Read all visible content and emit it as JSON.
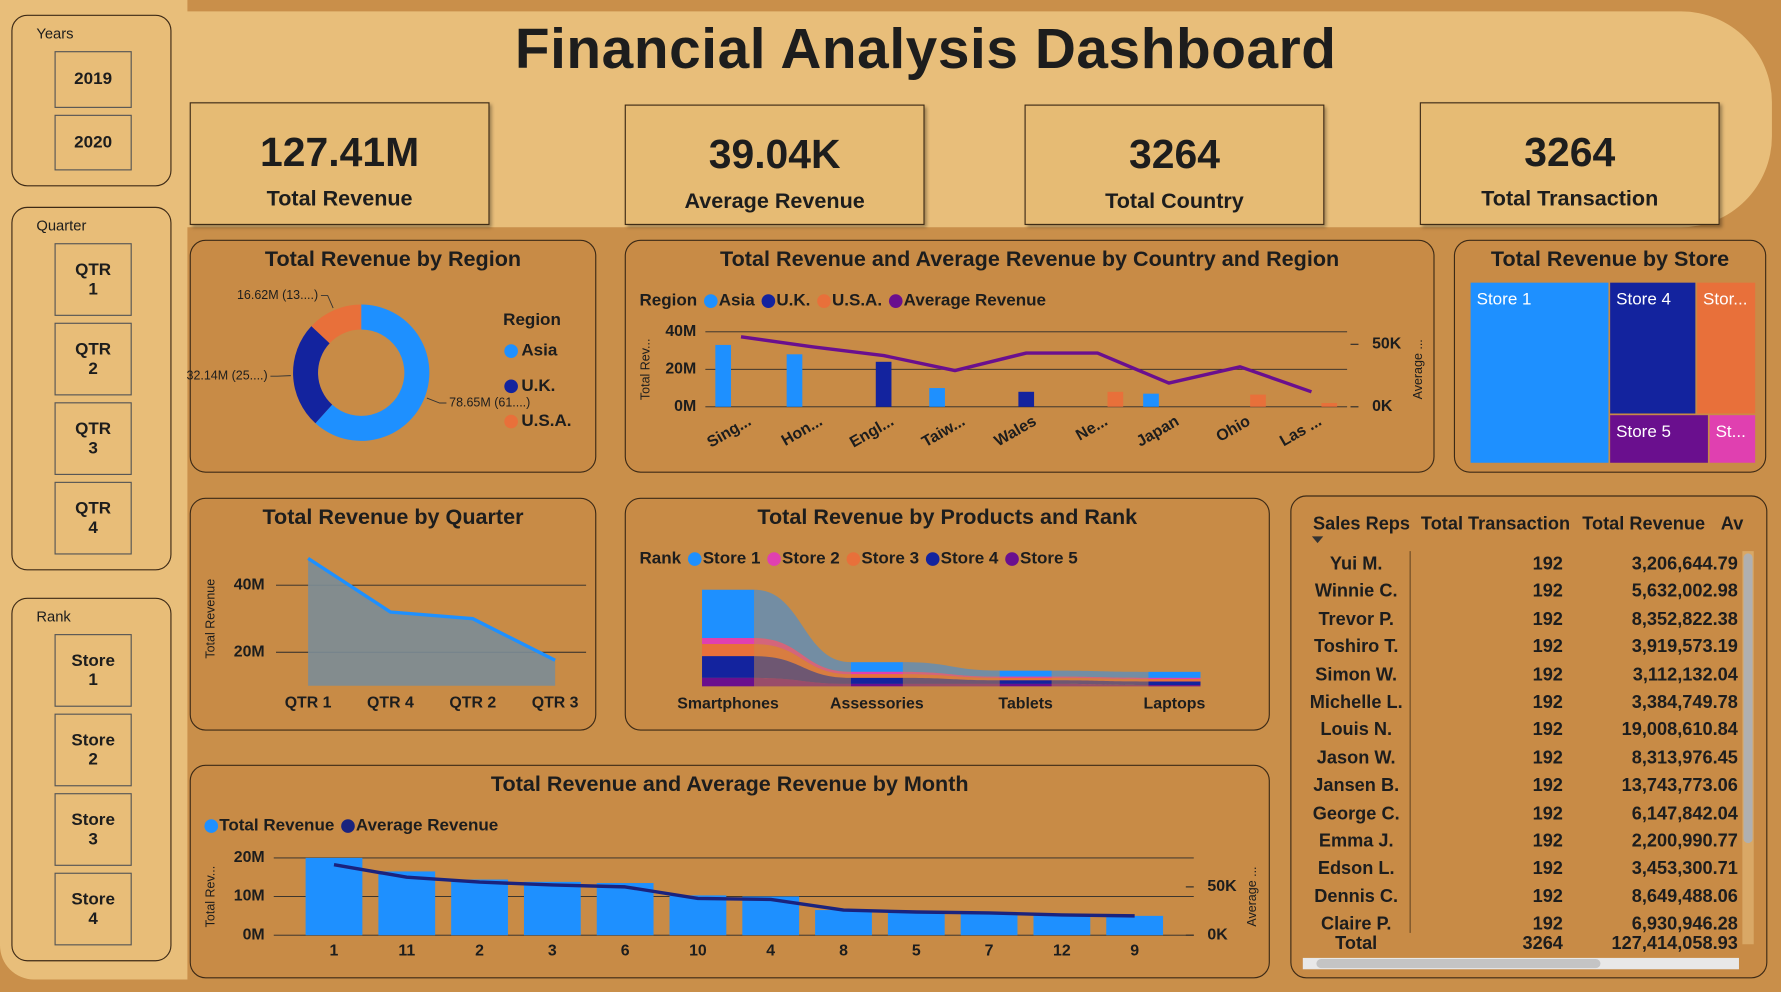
{
  "title": "Financial Analysis Dashboard",
  "slicers": [
    {
      "title": "Years",
      "items": [
        "2019",
        "2020"
      ]
    },
    {
      "title": "Quarter",
      "items": [
        "QTR 1",
        "QTR 2",
        "QTR 3",
        "QTR 4"
      ]
    },
    {
      "title": "Rank",
      "items": [
        "Store 1",
        "Store 2",
        "Store 3",
        "Store 4"
      ]
    }
  ],
  "kpis": [
    {
      "value": "127.41M",
      "label": "Total Revenue"
    },
    {
      "value": "39.04K",
      "label": "Average Revenue"
    },
    {
      "value": "3264",
      "label": "Total Country"
    },
    {
      "value": "3264",
      "label": "Total Transaction"
    }
  ],
  "chart_data": [
    {
      "type": "pie",
      "title": "Total Revenue by Region",
      "legend_title": "Region",
      "donut": true,
      "categories": [
        "Asia",
        "U.K.",
        "U.S.A."
      ],
      "values": [
        78650000,
        32140000,
        16620000
      ],
      "value_labels": [
        "78.65M (61....)",
        "32.14M (25....)",
        "16.62M (13....)"
      ],
      "colors": [
        "#1e90ff",
        "#13239e",
        "#e8703a"
      ]
    },
    {
      "type": "combo",
      "title": "Total Revenue and Average Revenue by Country and Region",
      "legend_title": "Region",
      "y_label": "Total Rev...",
      "y2_label": "Average ...",
      "grid": true,
      "categories": [
        "Sing...",
        "Hon...",
        "Engl...",
        "Taiw...",
        "Wales",
        "Ne...",
        "Japan",
        "Ohio",
        "Las ..."
      ],
      "series": [
        {
          "name": "Asia",
          "color": "#1e90ff",
          "values": [
            33000000,
            28000000,
            null,
            10000000,
            null,
            null,
            7000000,
            null,
            null
          ]
        },
        {
          "name": "U.K.",
          "color": "#13239e",
          "values": [
            null,
            null,
            24000000,
            null,
            8000000,
            null,
            null,
            null,
            null
          ]
        },
        {
          "name": "U.S.A.",
          "color": "#e8703a",
          "values": [
            null,
            null,
            null,
            null,
            null,
            8000000,
            null,
            6500000,
            2000000
          ]
        },
        {
          "name": "Average Revenue",
          "color": "#6a0f8e",
          "type": "line",
          "axis": "y2",
          "values": [
            56000,
            48000,
            41000,
            29000,
            43000,
            43000,
            19000,
            32000,
            12000
          ]
        }
      ],
      "ylim": [
        0,
        40000000
      ],
      "yticks": [
        {
          "value": 0,
          "label": "0M"
        },
        {
          "value": 20000000,
          "label": "20M"
        },
        {
          "value": 40000000,
          "label": "40M"
        }
      ],
      "y2lim": [
        0,
        60000
      ],
      "y2ticks": [
        {
          "value": 0,
          "label": "0K"
        },
        {
          "value": 50000,
          "label": "50K"
        }
      ]
    },
    {
      "type": "treemap",
      "title": "Total Revenue by Store",
      "categories": [
        "Store 1",
        "Store 4",
        "Stor...",
        "Store 5",
        "St..."
      ],
      "values": [
        62100000,
        28200000,
        19400000,
        12000000,
        5700000
      ],
      "colors": [
        "#1e90ff",
        "#13239e",
        "#e8703a",
        "#6a0f8e",
        "#e040b0"
      ]
    },
    {
      "type": "area",
      "title": "Total Revenue by Quarter",
      "y_label": "Total Revenue",
      "grid": true,
      "categories": [
        "QTR 1",
        "QTR 4",
        "QTR 2",
        "QTR 3"
      ],
      "values": [
        48000000,
        32000000,
        30000000,
        17600000
      ],
      "color": "#1e90ff",
      "fill": "#7b8c96",
      "ylim": [
        10000000,
        50000000
      ],
      "yticks": [
        {
          "value": 20000000,
          "label": "20M"
        },
        {
          "value": 40000000,
          "label": "40M"
        }
      ]
    },
    {
      "type": "ribbon",
      "title": "Total Revenue by Products and Rank",
      "legend_title": "Rank",
      "categories": [
        "Smartphones",
        "Assessories",
        "Tablets",
        "Laptops"
      ],
      "series": [
        {
          "name": "Store 1",
          "color": "#1e90ff",
          "values": [
            40000000,
            8000000,
            5000000,
            5000000
          ]
        },
        {
          "name": "Store 2",
          "color": "#e040b0",
          "values": [
            5000000,
            2000000,
            1000000,
            1000000
          ]
        },
        {
          "name": "Store 3",
          "color": "#e8703a",
          "values": [
            10000000,
            3000000,
            2000000,
            2000000
          ]
        },
        {
          "name": "Store 4",
          "color": "#13239e",
          "values": [
            18000000,
            5000000,
            3000000,
            3000000
          ]
        },
        {
          "name": "Store 5",
          "color": "#6a0f8e",
          "values": [
            7000000,
            2000000,
            2000000,
            1000000
          ]
        }
      ]
    },
    {
      "type": "combo",
      "title": "Total Revenue and Average Revenue by Month",
      "y_label": "Total Rev...",
      "y2_label": "Average ...",
      "grid": true,
      "categories": [
        "1",
        "11",
        "2",
        "3",
        "6",
        "10",
        "4",
        "8",
        "5",
        "7",
        "12",
        "9"
      ],
      "series": [
        {
          "name": "Total Revenue",
          "color": "#1e90ff",
          "values": [
            20000000,
            16500000,
            14400000,
            13800000,
            13500000,
            10300000,
            10000000,
            6500000,
            6200000,
            5900000,
            5300000,
            5000000
          ]
        },
        {
          "name": "Average Revenue",
          "color": "#1a237e",
          "type": "line",
          "axis": "y2",
          "values": [
            73000,
            60000,
            55000,
            52000,
            50000,
            38000,
            37000,
            26000,
            24000,
            23000,
            21000,
            20000
          ]
        }
      ],
      "ylim": [
        0,
        20000000
      ],
      "yticks": [
        {
          "value": 0,
          "label": "0M"
        },
        {
          "value": 10000000,
          "label": "10M"
        },
        {
          "value": 20000000,
          "label": "20M"
        }
      ],
      "y2lim": [
        0,
        80000
      ],
      "y2ticks": [
        {
          "value": 0,
          "label": "0K"
        },
        {
          "value": 50000,
          "label": "50K"
        }
      ]
    }
  ],
  "table": {
    "columns": [
      "Sales Reps",
      "Total Transaction",
      "Total Revenue",
      "Av"
    ],
    "rows": [
      [
        "Yui M.",
        "192",
        "3,206,644.79"
      ],
      [
        "Winnie C.",
        "192",
        "5,632,002.98"
      ],
      [
        "Trevor P.",
        "192",
        "8,352,822.38"
      ],
      [
        "Toshiro T.",
        "192",
        "3,919,573.19"
      ],
      [
        "Simon W.",
        "192",
        "3,112,132.04"
      ],
      [
        "Michelle L.",
        "192",
        "3,384,749.78"
      ],
      [
        "Louis N.",
        "192",
        "19,008,610.84"
      ],
      [
        "Jason W.",
        "192",
        "8,313,976.45"
      ],
      [
        "Jansen B.",
        "192",
        "13,743,773.06"
      ],
      [
        "George C.",
        "192",
        "6,147,842.04"
      ],
      [
        "Emma J.",
        "192",
        "2,200,990.77"
      ],
      [
        "Edson L.",
        "192",
        "3,453,300.71"
      ],
      [
        "Dennis C.",
        "192",
        "8,649,488.06"
      ],
      [
        "Claire P.",
        "192",
        "6,930,946.28"
      ]
    ],
    "total": [
      "Total",
      "3264",
      "127,414,058.93"
    ]
  }
}
